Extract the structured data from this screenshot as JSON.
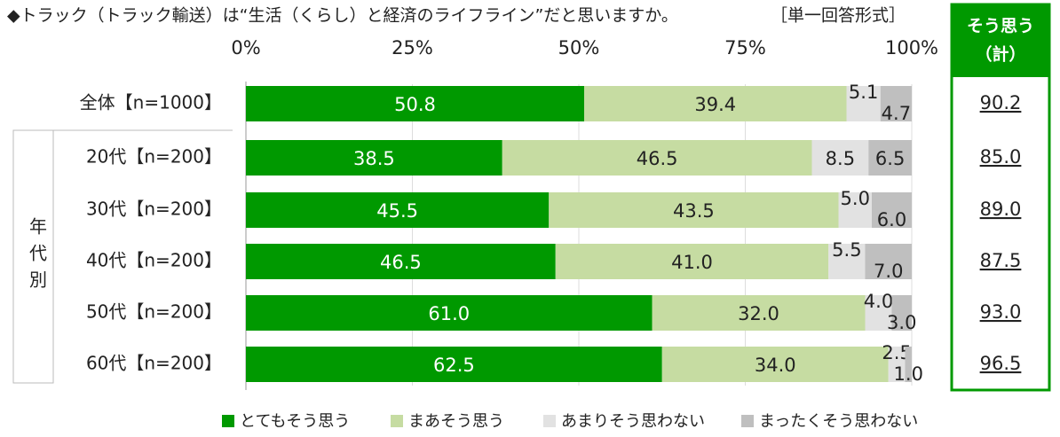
{
  "chart_data": {
    "type": "stacked-bar-horizontal",
    "title": "◆トラック（トラック輸送）は“生活（くらし）と経済のライフライン”だと思いますか。",
    "subtitle": "［単一回答形式］",
    "group_label": "年代別",
    "categories": [
      "全体【n=1000】",
      "20代【n=200】",
      "30代【n=200】",
      "40代【n=200】",
      "50代【n=200】",
      "60代【n=200】"
    ],
    "series": [
      {
        "name": "とてもそう思う",
        "color": "#009900",
        "values": [
          50.8,
          38.5,
          45.5,
          46.5,
          61.0,
          62.5
        ],
        "value_labels": [
          "50.8",
          "38.5",
          "45.5",
          "46.5",
          "61.0",
          "62.5"
        ]
      },
      {
        "name": "まあそう思う",
        "color": "#c6dca2",
        "values": [
          39.4,
          46.5,
          43.5,
          41.0,
          32.0,
          34.0
        ],
        "value_labels": [
          "39.4",
          "46.5",
          "43.5",
          "41.0",
          "32.0",
          "34.0"
        ]
      },
      {
        "name": "あまりそう思わない",
        "color": "#e2e2e2",
        "values": [
          5.1,
          8.5,
          5.0,
          5.5,
          4.0,
          2.5
        ],
        "value_labels": [
          "5.1",
          "8.5",
          "5.0",
          "5.5",
          "4.0",
          "2.5"
        ]
      },
      {
        "name": "まったくそう思わない",
        "color": "#bfbfbf",
        "values": [
          4.7,
          6.5,
          6.0,
          7.0,
          3.0,
          1.0
        ],
        "value_labels": [
          "4.7",
          "6.5",
          "6.0",
          "7.0",
          "3.0",
          "1.0"
        ]
      }
    ],
    "xlim": [
      0,
      100
    ],
    "xticks": [
      {
        "value": 0,
        "label": "0%"
      },
      {
        "value": 25,
        "label": "25%"
      },
      {
        "value": 50,
        "label": "50%"
      },
      {
        "value": 75,
        "label": "75%"
      },
      {
        "value": 100,
        "label": "100%"
      }
    ],
    "grid": true,
    "totals": {
      "title": [
        "そう思う",
        "（計）"
      ],
      "color": "#009900",
      "values": [
        90.2,
        85.0,
        89.0,
        87.5,
        93.0,
        96.5
      ],
      "value_labels": [
        "90.2",
        "85.0",
        "89.0",
        "87.5",
        "93.0",
        "96.5"
      ]
    }
  }
}
